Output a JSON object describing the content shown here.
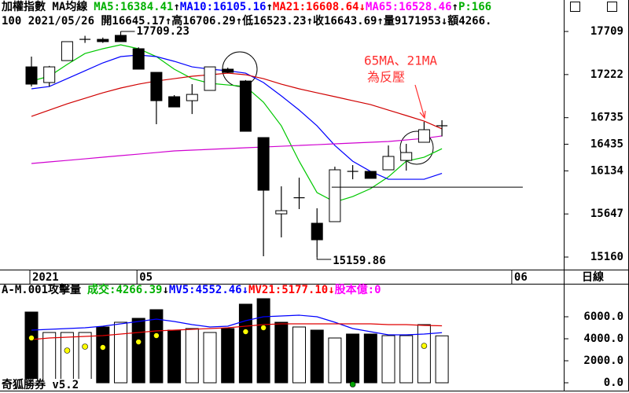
{
  "chart_data": [
    {
      "type": "candlestick",
      "header": [
        [
          {
            "text": "加權指數 MA均線",
            "color": "#000000"
          },
          {
            "text": "MA5:16384.41",
            "color": "#00b000"
          },
          {
            "text": "↑",
            "color": "#000000"
          },
          {
            "text": "MA10:16105.16",
            "color": "#0000ff"
          },
          {
            "text": "↑",
            "color": "#000000"
          },
          {
            "text": "MA21:16608.64",
            "color": "#ff0000"
          },
          {
            "text": "↓",
            "color": "#ff0000"
          },
          {
            "text": "MA65:16528.46",
            "color": "#ff00ff"
          },
          {
            "text": "↑",
            "color": "#000000"
          },
          {
            "text": "P:166",
            "color": "#00b000"
          }
        ],
        [
          {
            "text": "100 2021/05/26 開16645.17↑高16706.29↑低16523.23↑收16643.69↑量9171953↓額4266.",
            "color": "#000000"
          }
        ]
      ],
      "categories": [
        "2021",
        null,
        null,
        null,
        null,
        null,
        "05",
        null,
        null,
        null,
        null,
        null,
        null,
        null,
        null,
        null,
        null,
        null,
        null,
        null,
        null,
        null,
        null,
        null,
        null,
        null,
        null,
        "06"
      ],
      "open": [
        17309,
        17132,
        17380,
        17620,
        17620,
        17665,
        17514,
        17247,
        16972,
        16927,
        17043,
        17283,
        17149,
        16510,
        15648,
        15826,
        15542,
        15560,
        16130,
        16128,
        16146,
        16252,
        16457,
        16645.17,
        null,
        null,
        null,
        null
      ],
      "high": [
        17425,
        17320,
        17594,
        17660,
        17640,
        17709.23,
        17530,
        17247,
        16990,
        17114,
        17309,
        17300,
        17160,
        16510,
        15959,
        16057,
        15711,
        16181,
        16199,
        16128,
        16421,
        16439,
        16688,
        16706.29,
        null,
        null,
        null,
        null
      ],
      "low": [
        17087,
        17087,
        17380,
        17580,
        17580,
        17594,
        17283,
        16661,
        16856,
        16776,
        17043,
        17240,
        16581,
        15169,
        15382,
        15702,
        15159.86,
        15560,
        16039,
        16049,
        16146,
        16137,
        16457,
        16523.23,
        null,
        null,
        null,
        null
      ],
      "close": [
        17114,
        17309,
        17594,
        17620,
        17594,
        17594,
        17283,
        16927,
        16856,
        16998,
        17309,
        17247,
        16581,
        15915,
        15684,
        15830,
        15355,
        16146,
        16128,
        16049,
        16297,
        16341,
        16599,
        16643.69,
        null,
        null,
        null,
        null
      ],
      "high_labels": [
        null,
        null,
        null,
        null,
        null,
        "17709.23",
        null,
        null,
        null,
        null,
        null,
        null,
        null,
        null,
        null,
        null,
        null,
        null,
        null,
        null,
        null,
        null,
        null,
        null,
        null,
        null,
        null,
        null
      ],
      "low_labels": [
        null,
        null,
        null,
        null,
        null,
        null,
        null,
        null,
        null,
        null,
        null,
        null,
        null,
        null,
        null,
        null,
        "15159.86",
        null,
        null,
        null,
        null,
        null,
        null,
        null,
        null,
        null,
        null,
        null
      ],
      "series": [
        {
          "color": "#00c800",
          "values": [
            17149,
            17203,
            17336,
            17460,
            17514,
            17558,
            17514,
            17425,
            17283,
            17176,
            17123,
            17105,
            17087,
            16910,
            16643,
            16243,
            15888,
            15782,
            15844,
            15933,
            16066,
            16243,
            16288,
            16384.41,
            null,
            null,
            null,
            null
          ]
        },
        {
          "color": "#0000ff",
          "values": [
            17061,
            17087,
            17176,
            17265,
            17354,
            17425,
            17443,
            17425,
            17372,
            17309,
            17283,
            17265,
            17238,
            17132,
            16981,
            16821,
            16643,
            16421,
            16243,
            16128,
            16039,
            16039,
            16039,
            16105.16,
            null,
            null,
            null,
            null
          ]
        },
        {
          "color": "#d00000",
          "values": [
            16750,
            16821,
            16892,
            16954,
            17016,
            17070,
            17114,
            17149,
            17176,
            17203,
            17220,
            17238,
            17220,
            17176,
            17114,
            17061,
            17016,
            16972,
            16927,
            16883,
            16821,
            16759,
            16696,
            16608.64,
            null,
            null,
            null,
            null
          ]
        },
        {
          "color": "#d000d0",
          "values": [
            16217,
            16235,
            16252,
            16270,
            16288,
            16306,
            16323,
            16341,
            16359,
            16368,
            16377,
            16386,
            16395,
            16403,
            16412,
            16421,
            16430,
            16439,
            16448,
            16457,
            16466,
            16483,
            16501,
            16528.46,
            null,
            null,
            null,
            null
          ]
        }
      ],
      "reference_line": {
        "value": 15950
      },
      "callout": {
        "lines": [
          "65MA、21MA",
          "為反壓"
        ],
        "color": "#ff3030"
      },
      "period_label": "日線",
      "ylim": [
        15027,
        17887
      ],
      "yticks": [
        17709,
        17222,
        16735,
        16435,
        16134,
        15647,
        15160
      ]
    },
    {
      "type": "bar",
      "header": [
        {
          "text": "A-M.001攻擊量",
          "color": "#000000"
        },
        {
          "text": "成交:4266.39",
          "color": "#00b000"
        },
        {
          "text": "↓",
          "color": "#000000"
        },
        {
          "text": "MV5:4552.46",
          "color": "#0000ff"
        },
        {
          "text": "↓",
          "color": "#0000ff"
        },
        {
          "text": "MV21:5177.10",
          "color": "#ff0000"
        },
        {
          "text": "↓",
          "color": "#ff0000"
        },
        {
          "text": "股本億:0",
          "color": "#ff00ff"
        }
      ],
      "values": [
        6429,
        4571,
        4571,
        4571,
        5071,
        5500,
        5857,
        6643,
        4786,
        4929,
        4571,
        4929,
        7143,
        7643,
        5500,
        5071,
        4786,
        4071,
        4429,
        4429,
        4286,
        4286,
        5286,
        4266.39,
        null,
        null,
        null,
        null
      ],
      "series": [
        {
          "color": "#0000ff",
          "values": [
            4786,
            4857,
            4929,
            5000,
            5143,
            5357,
            5571,
            5786,
            5571,
            5286,
            5071,
            5143,
            5643,
            6000,
            6071,
            6143,
            6000,
            5500,
            4929,
            4643,
            4357,
            4357,
            4429,
            4552.46,
            null,
            null,
            null,
            null
          ]
        },
        {
          "color": "#e00000",
          "values": [
            3929,
            4071,
            4143,
            4214,
            4286,
            4429,
            4571,
            4714,
            4786,
            4857,
            4929,
            5000,
            5143,
            5286,
            5357,
            5357,
            5357,
            5357,
            5357,
            5357,
            5286,
            5286,
            5214,
            5177.1,
            null,
            null,
            null,
            null
          ]
        }
      ],
      "markers": [
        {
          "color": "#ffff00",
          "values": [
            4071,
            null,
            2929,
            3286,
            3214,
            null,
            3714,
            4286,
            null,
            null,
            null,
            null,
            4643,
            5000,
            null,
            null,
            null,
            null,
            null,
            null,
            null,
            null,
            3357,
            null,
            null,
            null,
            null,
            null
          ]
        },
        {
          "color": "#00a000",
          "values": [
            null,
            null,
            null,
            null,
            null,
            null,
            null,
            null,
            null,
            null,
            null,
            null,
            null,
            null,
            null,
            null,
            null,
            null,
            -143,
            null,
            null,
            null,
            null,
            null,
            null,
            null,
            null,
            null
          ]
        }
      ],
      "footer": "奇狐勝券 v5.2",
      "ylim": [
        -714,
        7857
      ],
      "yticks": [
        {
          "value": 6000,
          "label": "6000.0"
        },
        {
          "value": 4000,
          "label": "4000.0"
        },
        {
          "value": 2000,
          "label": "2000.0"
        },
        {
          "value": 0,
          "label": "0.0"
        }
      ]
    }
  ]
}
